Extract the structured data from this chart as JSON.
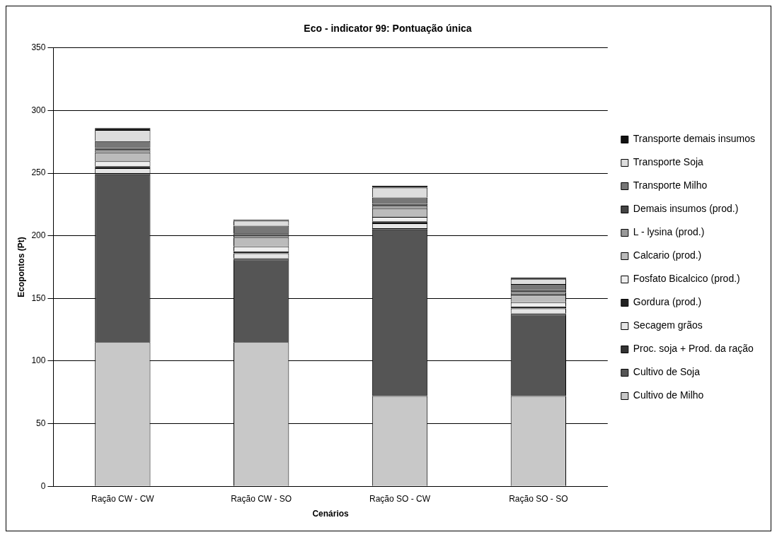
{
  "chart_data": {
    "type": "bar",
    "title": "Eco - indicator 99: Pontuação única",
    "xlabel": "Cenários",
    "ylabel": "Ecopontos (Pt)",
    "categories": [
      "Ração CW - CW",
      "Ração CW - SO",
      "Ração SO - CW",
      "Ração SO - SO"
    ],
    "stacked": true,
    "ylim": [
      0,
      350
    ],
    "yticks": [
      0,
      50,
      100,
      150,
      200,
      250,
      300,
      350
    ],
    "grid": "y",
    "legend": "right",
    "series": [
      {
        "name": "Cultivo de Milho",
        "color": "#c8c8c8",
        "values": [
          115,
          115,
          72,
          72
        ]
      },
      {
        "name": "Cultivo de Soja",
        "color": "#555555",
        "values": [
          134,
          66,
          133,
          65
        ]
      },
      {
        "name": "Proc. soja + Prod. da ração",
        "color": "#333333",
        "values": [
          1,
          1,
          1,
          1
        ]
      },
      {
        "name": "Secagem grãos",
        "color": "#e6e6e6",
        "values": [
          4,
          4,
          4,
          4
        ]
      },
      {
        "name": "Gordura (prod.)",
        "color": "#222222",
        "values": [
          1.5,
          1.5,
          1.5,
          1.5
        ]
      },
      {
        "name": "Fosfato Bicalcico (prod.)",
        "color": "#eeeeee",
        "values": [
          4,
          4,
          3.5,
          3.5
        ]
      },
      {
        "name": "Calcario (prod.)",
        "color": "#bbbbbb",
        "values": [
          7,
          7,
          7,
          6
        ]
      },
      {
        "name": "L - lysina (prod.)",
        "color": "#999999",
        "values": [
          2,
          2,
          2,
          2
        ]
      },
      {
        "name": "Demais insumos (prod.)",
        "color": "#444444",
        "values": [
          1.5,
          1.5,
          1.5,
          1.5
        ]
      },
      {
        "name": "Transporte Milho",
        "color": "#777777",
        "values": [
          5.5,
          6,
          5,
          5
        ]
      },
      {
        "name": "Transporte Soja",
        "color": "#dddddd",
        "values": [
          9,
          4,
          8,
          4
        ]
      },
      {
        "name": "Transporte demais insumos",
        "color": "#111111",
        "values": [
          1.5,
          1,
          1.5,
          1
        ]
      }
    ]
  }
}
